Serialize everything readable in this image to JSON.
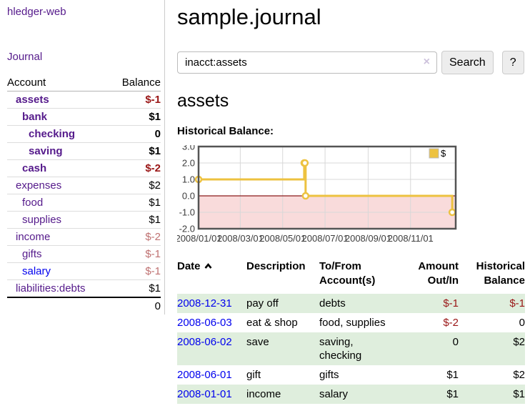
{
  "app": {
    "title": "hledger-web"
  },
  "sidebar": {
    "nav": {
      "journal_label": "Journal"
    },
    "accounts": {
      "header_account": "Account",
      "header_balance": "Balance",
      "rows": [
        {
          "label": "assets",
          "depth": 1,
          "bold": true,
          "balance": "$-1",
          "balance_color": "negative"
        },
        {
          "label": "bank",
          "depth": 2,
          "bold": true,
          "balance": "$1",
          "balance_color": "normal"
        },
        {
          "label": "checking",
          "depth": 3,
          "bold": true,
          "balance": "0",
          "balance_color": "normal"
        },
        {
          "label": "saving",
          "depth": 3,
          "bold": true,
          "balance": "$1",
          "balance_color": "normal"
        },
        {
          "label": "cash",
          "depth": 2,
          "bold": true,
          "balance": "$-2",
          "balance_color": "negative"
        },
        {
          "label": "expenses",
          "depth": 1,
          "bold": false,
          "balance": "$2",
          "balance_color": "normal"
        },
        {
          "label": "food",
          "depth": 2,
          "bold": false,
          "balance": "$1",
          "balance_color": "normal"
        },
        {
          "label": "supplies",
          "depth": 2,
          "bold": false,
          "balance": "$1",
          "balance_color": "normal"
        },
        {
          "label": "income",
          "depth": 1,
          "bold": false,
          "balance": "$-2",
          "balance_color": "negative_faded"
        },
        {
          "label": "gifts",
          "depth": 2,
          "bold": false,
          "balance": "$-1",
          "balance_color": "negative_faded"
        },
        {
          "label": "salary",
          "depth": 2,
          "bold": false,
          "balance": "$-1",
          "balance_color": "negative_faded",
          "link_color": "blue"
        },
        {
          "label": "liabilities:debts",
          "depth": 1,
          "bold": false,
          "balance": "$1",
          "balance_color": "normal"
        }
      ],
      "total": "0"
    }
  },
  "main": {
    "title": "sample.journal",
    "search": {
      "value": "inacct:assets",
      "clear_icon": "×",
      "search_button_label": "Search",
      "help_button_label": "?"
    },
    "account_heading": "assets",
    "chart_label": "Historical Balance:"
  },
  "chart_data": {
    "type": "line",
    "style": "step",
    "title": "Historical Balance",
    "x_start": "2008-01-01",
    "x_span_days": 370,
    "series": [
      {
        "name": "$",
        "color": "#EDC240",
        "x": [
          "2008-01-01",
          "2008-06-01",
          "2008-06-02",
          "2008-06-03",
          "2008-12-31"
        ],
        "y": [
          1,
          2,
          2,
          0,
          -1
        ]
      }
    ],
    "x_ticks": [
      {
        "label": "2008/01/01",
        "date": "2008-01-01"
      },
      {
        "label": "2008/03/01",
        "date": "2008-03-01"
      },
      {
        "label": "2008/05/01",
        "date": "2008-05-01"
      },
      {
        "label": "2008/07/01",
        "date": "2008-07-01"
      },
      {
        "label": "2008/09/01",
        "date": "2008-09-01"
      },
      {
        "label": "2008/11/01",
        "date": "2008-11-01"
      }
    ],
    "y_ticks": [
      {
        "label": "3.0",
        "value": 3
      },
      {
        "label": "2.0",
        "value": 2
      },
      {
        "label": "1.0",
        "value": 1
      },
      {
        "label": "0.0",
        "value": 0
      },
      {
        "label": "-1.0",
        "value": -1
      },
      {
        "label": "-2.0",
        "value": -2
      }
    ],
    "ylim": [
      -2,
      3
    ],
    "grid": true,
    "legend": {
      "label": "$",
      "position": "top-right"
    },
    "negative_region_color": "#f9dbdb",
    "zero_line_color": "#8b1a1a",
    "grid_color": "#d8d8d8",
    "border_color": "#545454"
  },
  "register": {
    "headers": {
      "date": "Date",
      "description": "Description",
      "accounts": "To/From Account(s)",
      "amount": "Amount Out/In",
      "balance": "Historical Balance"
    },
    "rows": [
      {
        "date": "2008-12-31",
        "description": "pay off",
        "accounts": "debts",
        "amount": "$-1",
        "amount_negative": true,
        "balance": "$-1",
        "balance_negative": true
      },
      {
        "date": "2008-06-03",
        "description": "eat & shop",
        "accounts": "food, supplies",
        "amount": "$-2",
        "amount_negative": true,
        "balance": "0",
        "balance_negative": false
      },
      {
        "date": "2008-06-02",
        "description": "save",
        "accounts": "saving, checking",
        "amount": "0",
        "amount_negative": false,
        "balance": "$2",
        "balance_negative": false
      },
      {
        "date": "2008-06-01",
        "description": "gift",
        "accounts": "gifts",
        "amount": "$1",
        "amount_negative": false,
        "balance": "$2",
        "balance_negative": false
      },
      {
        "date": "2008-01-01",
        "description": "income",
        "accounts": "salary",
        "amount": "$1",
        "amount_negative": false,
        "balance": "$1",
        "balance_negative": false
      }
    ]
  },
  "colors": {
    "link_visited": "#551A8B",
    "link": "#0000EE",
    "negative": "#9a1616",
    "negative_faded": "#bf7171",
    "row_stripe_green": "#dfeedd",
    "series_yellow": "#EDC240"
  }
}
